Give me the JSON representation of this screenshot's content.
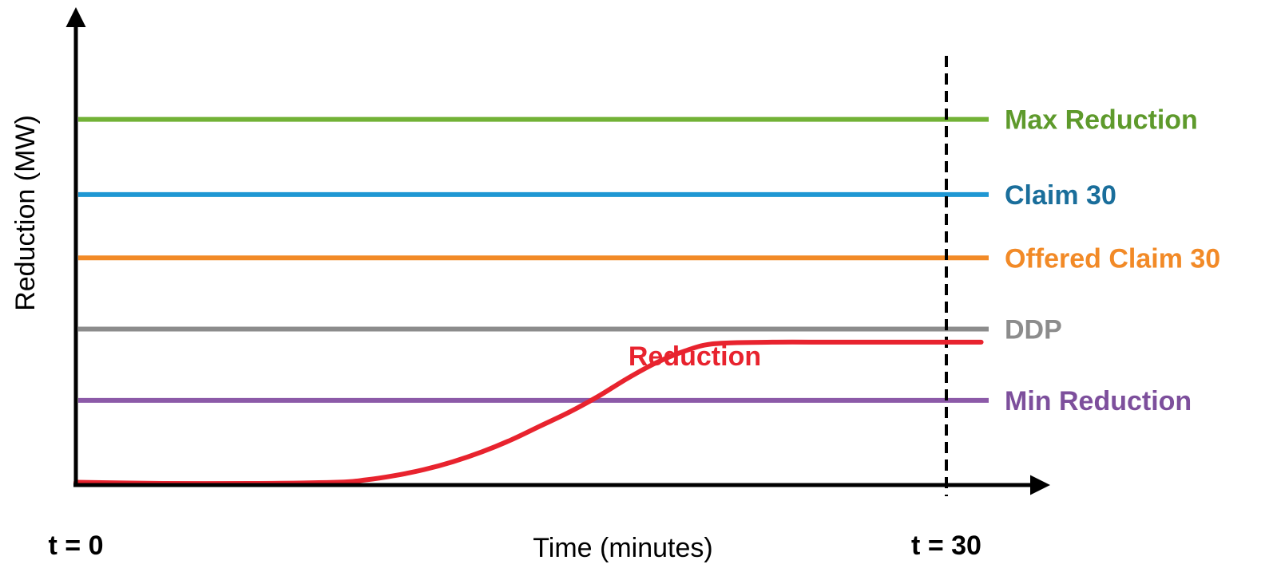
{
  "chart_data": {
    "type": "line",
    "title": "",
    "xlabel": "Time (minutes)",
    "ylabel": "Reduction (MW)",
    "xlim": [
      0,
      30
    ],
    "ylim": [
      0,
      100
    ],
    "x_ticks": [
      {
        "value": 0,
        "label": "t = 0"
      },
      {
        "value": 30,
        "label": "t = 30"
      }
    ],
    "vertical_marker": {
      "x": 30,
      "style": "dashed",
      "color": "#000000"
    },
    "grid": false,
    "levels": [
      {
        "name": "Max Reduction",
        "value": 92,
        "color": "#72b236",
        "label_color": "#5e9a2c"
      },
      {
        "name": "Claim 30",
        "value": 73,
        "color": "#1f97d3",
        "label_color": "#1a6e9b"
      },
      {
        "name": "Offered Claim 30",
        "value": 57,
        "color": "#f28a27",
        "label_color": "#f28a27"
      },
      {
        "name": "DDP",
        "value": 39,
        "color": "#8c8c8c",
        "label_color": "#8c8c8c"
      },
      {
        "name": "Min Reduction",
        "value": 21,
        "color": "#8c5aa8",
        "label_color": "#7d4f9c"
      }
    ],
    "series": [
      {
        "name": "Reduction",
        "color": "#e8232e",
        "x": [
          0,
          3,
          6,
          9,
          10,
          11,
          12,
          13,
          14,
          15,
          16,
          17,
          18,
          19,
          20,
          21,
          22,
          24,
          26,
          28,
          30,
          31.2
        ],
        "values": [
          0.3,
          0,
          0,
          0.3,
          0.9,
          2,
          3.5,
          5.5,
          8,
          11,
          14.5,
          18,
          22,
          26.5,
          30.5,
          33.5,
          35.3,
          35.7,
          35.7,
          35.7,
          35.7,
          35.7
        ]
      }
    ]
  }
}
